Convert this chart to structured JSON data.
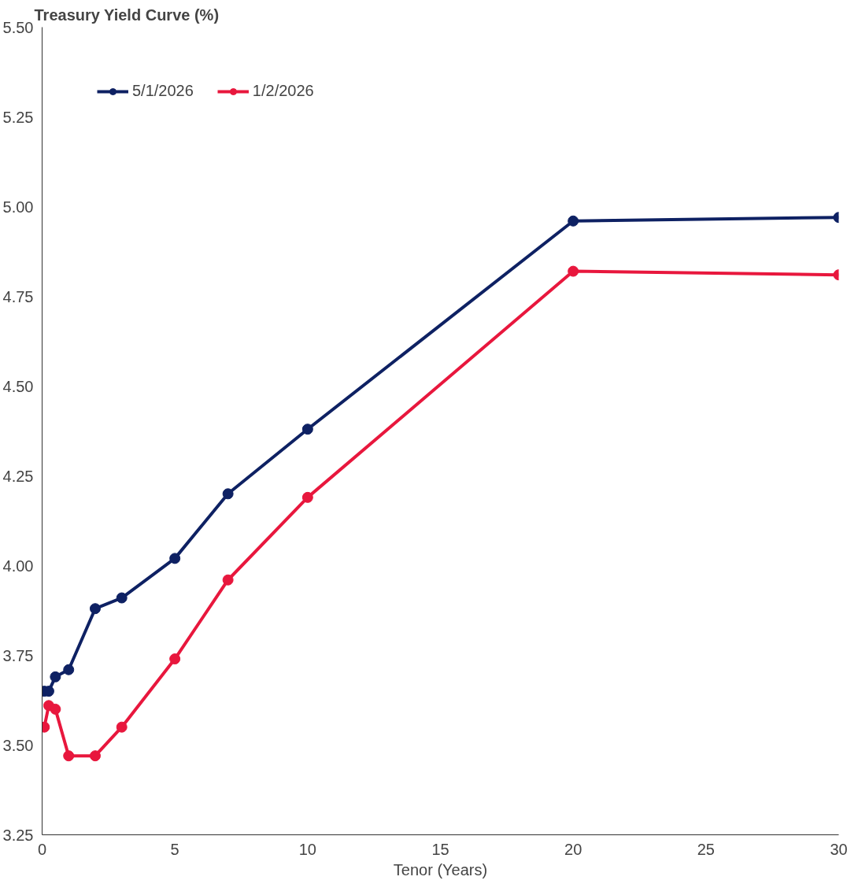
{
  "chart_data": {
    "type": "line",
    "title": "Treasury Yield Curve (%)",
    "xlabel": "Tenor (Years)",
    "xlim": [
      0,
      30
    ],
    "xticks": [
      0,
      5,
      10,
      15,
      20,
      25,
      30
    ],
    "ylim": [
      3.25,
      5.5
    ],
    "yticks": [
      3.25,
      {
        "value": 3.5,
        "label": "3.50"
      },
      3.75,
      {
        "value": 4.0,
        "label": "4.00"
      },
      4.25,
      {
        "value": 4.5,
        "label": "4.50"
      },
      4.75,
      {
        "value": 5.0,
        "label": "5.00"
      },
      5.25,
      {
        "value": 5.5,
        "label": "5.50"
      }
    ],
    "x": [
      0.083,
      0.25,
      0.5,
      1,
      2,
      3,
      5,
      7,
      10,
      20,
      30
    ],
    "series": [
      {
        "name": "5/1/2026",
        "color": "#0e2163",
        "values": [
          3.65,
          3.65,
          3.69,
          3.71,
          3.88,
          3.91,
          4.02,
          4.2,
          4.38,
          4.96,
          4.97
        ]
      },
      {
        "name": "1/2/2026",
        "color": "#e8173d",
        "values": [
          3.55,
          3.61,
          3.6,
          3.47,
          3.47,
          3.55,
          3.74,
          3.96,
          4.19,
          4.82,
          4.81
        ]
      }
    ],
    "marker": "circle",
    "line_style": "solid",
    "grid": false,
    "legend": "top left"
  }
}
